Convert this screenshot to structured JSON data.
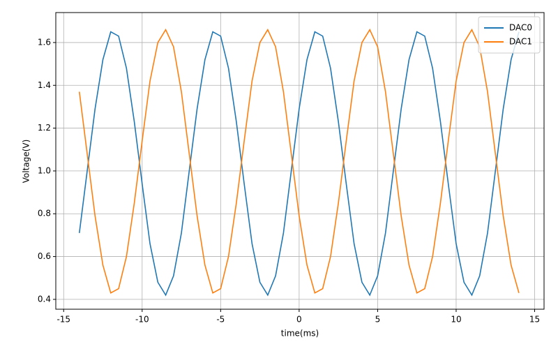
{
  "chart_data": {
    "type": "line",
    "x_label": "time(ms)",
    "y_label": "Voltage(V)",
    "x": [
      -14,
      -13.5,
      -13,
      -12.5,
      -12,
      -11.5,
      -11,
      -10.5,
      -10,
      -9.5,
      -9,
      -8.5,
      -8,
      -7.5,
      -7,
      -6.5,
      -6,
      -5.5,
      -5,
      -4.5,
      -4,
      -3.5,
      -3,
      -2.5,
      -2,
      -1.5,
      -1,
      -0.5,
      0,
      0.5,
      1,
      1.5,
      2,
      2.5,
      3,
      3.5,
      4,
      4.5,
      5,
      5.5,
      6,
      6.5,
      7,
      7.5,
      8,
      8.5,
      9,
      9.5,
      10,
      10.5,
      11,
      11.5,
      12,
      12.5,
      13,
      13.5,
      14
    ],
    "series": [
      {
        "name": "DAC0",
        "color": "#1f77b4",
        "values": [
          0.71,
          1.0,
          1.29,
          1.52,
          1.65,
          1.63,
          1.48,
          1.23,
          0.94,
          0.66,
          0.48,
          0.42,
          0.51,
          0.71,
          1.0,
          1.29,
          1.52,
          1.65,
          1.63,
          1.48,
          1.23,
          0.94,
          0.66,
          0.48,
          0.42,
          0.51,
          0.71,
          1.0,
          1.29,
          1.52,
          1.65,
          1.63,
          1.48,
          1.23,
          0.94,
          0.66,
          0.48,
          0.42,
          0.51,
          0.71,
          1.0,
          1.29,
          1.52,
          1.65,
          1.63,
          1.48,
          1.23,
          0.94,
          0.66,
          0.48,
          0.42,
          0.51,
          0.71,
          1.0,
          1.29,
          1.52,
          1.65
        ]
      },
      {
        "name": "DAC1",
        "color": "#ff7f0e",
        "values": [
          1.37,
          1.08,
          0.79,
          0.56,
          0.43,
          0.45,
          0.6,
          0.85,
          1.14,
          1.42,
          1.6,
          1.66,
          1.58,
          1.37,
          1.08,
          0.79,
          0.56,
          0.43,
          0.45,
          0.6,
          0.85,
          1.14,
          1.42,
          1.6,
          1.66,
          1.58,
          1.37,
          1.08,
          0.79,
          0.56,
          0.43,
          0.45,
          0.6,
          0.85,
          1.14,
          1.42,
          1.6,
          1.66,
          1.58,
          1.37,
          1.08,
          0.79,
          0.56,
          0.43,
          0.45,
          0.6,
          0.85,
          1.14,
          1.42,
          1.6,
          1.66,
          1.58,
          1.37,
          1.08,
          0.79,
          0.56,
          0.43
        ]
      }
    ],
    "xlim": [
      -15.5,
      15.6
    ],
    "xticks": [
      -15,
      -10,
      -5,
      0,
      5,
      10,
      15
    ],
    "ylim": [
      0.354,
      1.74
    ],
    "yticks": [
      0.4,
      0.6,
      0.8,
      {
        "value": 1,
        "label": "1.0"
      },
      1.2,
      1.4,
      1.6
    ],
    "grid": true,
    "legend": "upper right"
  }
}
